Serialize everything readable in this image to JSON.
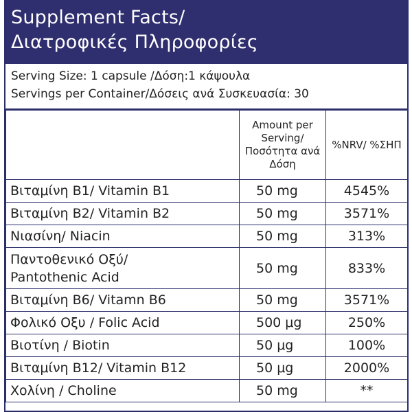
{
  "header": {
    "title_en": "Supplement Facts/",
    "title_gr": "Διατροφικές Πληροφορίες"
  },
  "serving": {
    "size": "Serving Size: 1 capsule /Δόση:1 κάψουλα",
    "per_container": "Servings per Container/Δόσεις ανά Συσκευασία: 30"
  },
  "table": {
    "col_amount": "Amount per Serving/ Ποσότητα ανά Δόση",
    "col_nrv": "%NRV/ %ΣΗΠ",
    "rows": [
      {
        "name": "Βιταμίνη Β1/ Vitamin B1",
        "amount": "50 mg",
        "nrv": "4545%"
      },
      {
        "name": "Βιταμίνη Β2/ Vitamin B2",
        "amount": "50 mg",
        "nrv": "3571%"
      },
      {
        "name": "Νιασίνη/ Niacin",
        "amount": "50 mg",
        "nrv": "313%"
      },
      {
        "name_line1": "Παντοθενικό Οξύ/",
        "name_line2": "Pantothenic Acid",
        "amount": "50 mg",
        "nrv": "833%"
      },
      {
        "name": "Βιταμίνη Β6/ Vitamn B6",
        "amount": "50 mg",
        "nrv": "3571%"
      },
      {
        "name": "Φολικό Οξυ / Folic Acid",
        "amount": "500 μg",
        "nrv": "250%"
      },
      {
        "name": "Βιοτίνη / Biotin",
        "amount": "50 μg",
        "nrv": "100%"
      },
      {
        "name": "Βιταμίνη Β12/ Vitamin B12",
        "amount": "50 μg",
        "nrv": "2000%"
      },
      {
        "name": "Χολίνη / Choline",
        "amount": "50 mg",
        "nrv": "**"
      }
    ]
  }
}
